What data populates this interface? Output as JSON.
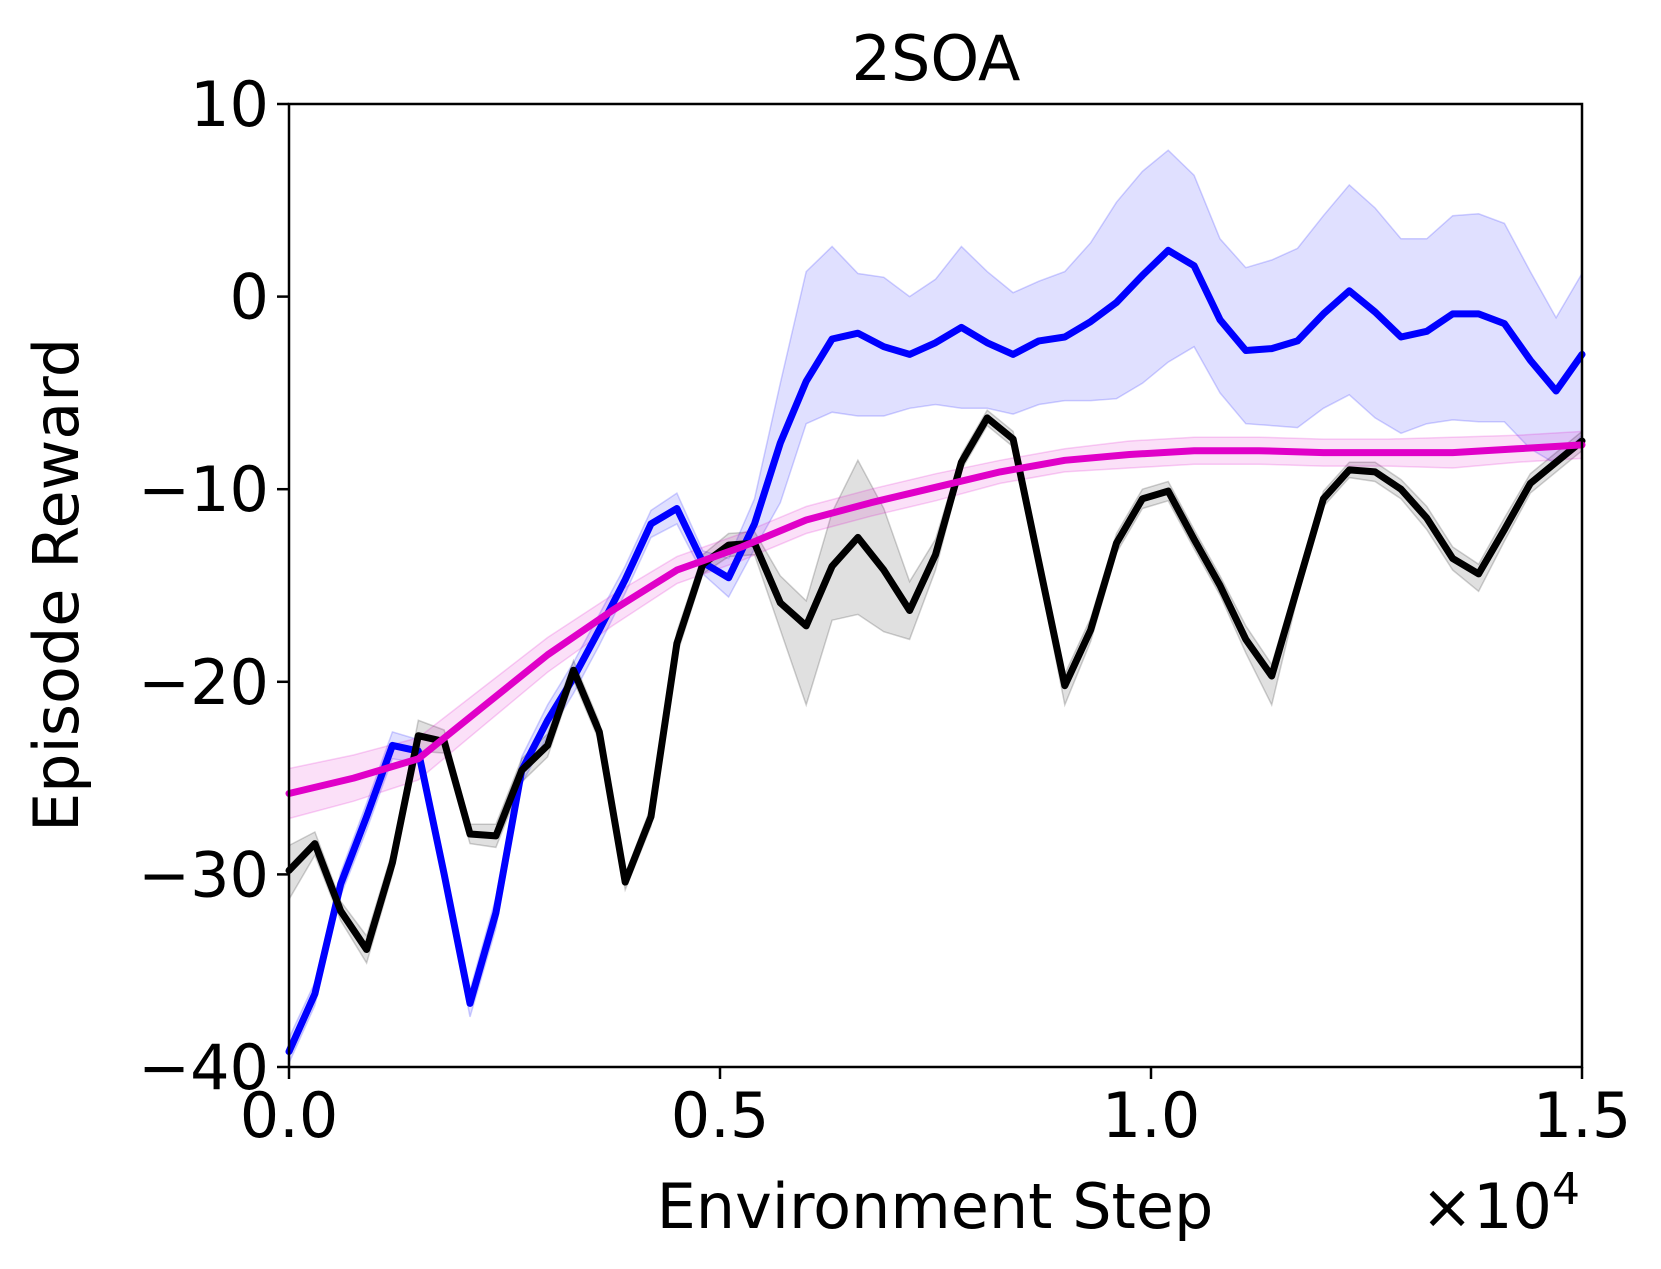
{
  "chart_data": {
    "type": "line",
    "title": "2SOA",
    "xlabel": "Environment Step",
    "ylabel": "Episode Reward",
    "x_scale_label": "×10",
    "x_scale_exponent": "4",
    "xlim": [
      0.0,
      1.5
    ],
    "ylim": [
      -40,
      10
    ],
    "xticks": [
      0.0,
      0.5,
      1.0,
      1.5
    ],
    "xtick_labels": [
      "0.0",
      "0.5",
      "1.0",
      "1.5"
    ],
    "yticks": [
      10,
      0,
      -10,
      -20,
      -30,
      -40
    ],
    "ytick_labels": [
      "10",
      "0",
      "−10",
      "−20",
      "−30",
      "−40"
    ],
    "grid": false,
    "series": [
      {
        "name": "blue",
        "color": "#0000ff",
        "x": [
          0.0,
          0.03,
          0.06,
          0.09,
          0.12,
          0.15,
          0.18,
          0.21,
          0.24,
          0.27,
          0.3,
          0.33,
          0.36,
          0.39,
          0.42,
          0.45,
          0.48,
          0.51,
          0.54,
          0.57,
          0.6,
          0.63,
          0.66,
          0.69,
          0.72,
          0.75,
          0.78,
          0.81,
          0.84,
          0.87,
          0.9,
          0.93,
          0.96,
          0.99,
          1.02,
          1.05,
          1.08,
          1.11,
          1.14,
          1.17,
          1.2,
          1.23,
          1.26,
          1.29,
          1.32,
          1.35,
          1.38,
          1.41,
          1.44,
          1.47,
          1.5
        ],
        "values": [
          -39.2,
          -36.2,
          -30.5,
          -27.0,
          -23.3,
          -23.6,
          -30.0,
          -36.7,
          -32.0,
          -24.6,
          -22.0,
          -19.8,
          -17.3,
          -14.7,
          -11.8,
          -11.0,
          -13.8,
          -14.6,
          -11.8,
          -7.6,
          -4.4,
          -2.2,
          -1.9,
          -2.6,
          -3.0,
          -2.4,
          -1.6,
          -2.4,
          -3.0,
          -2.3,
          -2.1,
          -1.3,
          -0.3,
          1.1,
          2.4,
          1.6,
          -1.2,
          -2.8,
          -2.7,
          -2.3,
          -0.9,
          0.3,
          -0.8,
          -2.1,
          -1.8,
          -0.9,
          -0.9,
          -1.4,
          -3.3,
          -4.9,
          -3.0
        ],
        "upper": [
          -38.5,
          -35.6,
          -29.9,
          -26.3,
          -22.6,
          -23.0,
          -29.4,
          -36.0,
          -31.2,
          -23.9,
          -21.2,
          -19.0,
          -16.5,
          -14.0,
          -11.1,
          -10.2,
          -13.2,
          -13.6,
          -10.5,
          -4.5,
          1.3,
          2.6,
          1.2,
          1.0,
          0.0,
          0.9,
          2.6,
          1.3,
          0.2,
          0.8,
          1.3,
          2.8,
          4.9,
          6.5,
          7.6,
          6.3,
          3.0,
          1.5,
          1.9,
          2.5,
          4.2,
          5.8,
          4.6,
          3.0,
          3.0,
          4.2,
          4.3,
          3.8,
          1.3,
          -1.1,
          1.2
        ],
        "lower": [
          -39.8,
          -36.8,
          -31.1,
          -27.7,
          -24.0,
          -24.2,
          -30.6,
          -37.4,
          -32.8,
          -25.3,
          -22.8,
          -20.6,
          -18.1,
          -15.4,
          -12.5,
          -11.8,
          -14.4,
          -15.6,
          -13.1,
          -10.7,
          -6.6,
          -6.0,
          -6.2,
          -6.2,
          -5.8,
          -5.6,
          -5.8,
          -5.8,
          -6.1,
          -5.6,
          -5.4,
          -5.4,
          -5.3,
          -4.5,
          -3.4,
          -2.6,
          -5.0,
          -6.6,
          -6.7,
          -6.8,
          -5.8,
          -5.1,
          -6.3,
          -7.1,
          -6.6,
          -6.4,
          -6.5,
          -6.5,
          -7.9,
          -8.7,
          -7.2
        ]
      },
      {
        "name": "black",
        "color": "#000000",
        "x": [
          0.0,
          0.03,
          0.06,
          0.09,
          0.12,
          0.15,
          0.18,
          0.21,
          0.24,
          0.27,
          0.3,
          0.33,
          0.36,
          0.39,
          0.42,
          0.45,
          0.48,
          0.51,
          0.54,
          0.57,
          0.6,
          0.63,
          0.66,
          0.69,
          0.72,
          0.75,
          0.78,
          0.81,
          0.84,
          0.87,
          0.9,
          0.93,
          0.96,
          0.99,
          1.02,
          1.05,
          1.08,
          1.11,
          1.14,
          1.17,
          1.2,
          1.23,
          1.26,
          1.29,
          1.32,
          1.35,
          1.38,
          1.41,
          1.44,
          1.47,
          1.5
        ],
        "values": [
          -29.8,
          -28.4,
          -31.9,
          -33.9,
          -29.4,
          -22.8,
          -23.1,
          -27.9,
          -28.0,
          -24.6,
          -23.3,
          -19.4,
          -22.6,
          -30.4,
          -27.0,
          -18.0,
          -13.9,
          -12.9,
          -12.8,
          -15.9,
          -17.1,
          -14.0,
          -12.5,
          -14.2,
          -16.3,
          -13.4,
          -8.6,
          -6.3,
          -7.4,
          -13.8,
          -20.2,
          -17.3,
          -12.8,
          -10.5,
          -10.1,
          -12.6,
          -15.0,
          -17.8,
          -19.7,
          -15.1,
          -10.5,
          -9.0,
          -9.1,
          -10.0,
          -11.5,
          -13.6,
          -14.4,
          -12.1,
          -9.7,
          -8.6,
          -7.5
        ],
        "upper": [
          -28.5,
          -27.8,
          -31.4,
          -33.2,
          -28.8,
          -22.0,
          -22.5,
          -27.4,
          -27.4,
          -24.0,
          -22.7,
          -18.9,
          -22.1,
          -30.0,
          -26.5,
          -17.4,
          -13.4,
          -12.3,
          -12.2,
          -14.5,
          -15.8,
          -11.2,
          -8.5,
          -11.0,
          -14.8,
          -12.6,
          -8.2,
          -5.9,
          -7.0,
          -13.3,
          -19.6,
          -16.7,
          -12.3,
          -10.0,
          -9.6,
          -12.1,
          -14.5,
          -17.1,
          -19.1,
          -14.6,
          -10.1,
          -8.6,
          -8.6,
          -9.5,
          -10.9,
          -13.0,
          -13.9,
          -11.5,
          -9.2,
          -8.1,
          -7.0
        ],
        "lower": [
          -31.3,
          -29.0,
          -32.4,
          -34.6,
          -30.0,
          -23.6,
          -23.7,
          -28.4,
          -28.6,
          -25.2,
          -23.9,
          -19.9,
          -23.1,
          -30.8,
          -27.5,
          -18.6,
          -14.4,
          -13.5,
          -13.4,
          -17.3,
          -21.2,
          -16.8,
          -16.5,
          -17.4,
          -17.8,
          -14.2,
          -9.0,
          -6.7,
          -7.8,
          -14.3,
          -21.2,
          -17.9,
          -13.3,
          -11.0,
          -10.6,
          -13.1,
          -15.5,
          -18.5,
          -21.2,
          -15.6,
          -10.9,
          -9.4,
          -9.6,
          -10.5,
          -12.1,
          -14.2,
          -15.3,
          -12.7,
          -10.2,
          -9.1,
          -8.0
        ]
      },
      {
        "name": "magenta",
        "color": "#e000c8",
        "x": [
          0.0,
          0.075,
          0.15,
          0.225,
          0.3,
          0.375,
          0.45,
          0.525,
          0.6,
          0.675,
          0.75,
          0.825,
          0.9,
          0.975,
          1.05,
          1.125,
          1.2,
          1.275,
          1.35,
          1.425,
          1.5
        ],
        "values": [
          -25.8,
          -25.0,
          -24.0,
          -21.3,
          -18.6,
          -16.3,
          -14.2,
          -13.0,
          -11.6,
          -10.7,
          -9.9,
          -9.1,
          -8.5,
          -8.2,
          -8.0,
          -8.0,
          -8.1,
          -8.1,
          -8.1,
          -7.9,
          -7.7
        ],
        "upper": [
          -24.5,
          -23.8,
          -22.9,
          -20.3,
          -17.7,
          -15.5,
          -13.5,
          -12.3,
          -10.9,
          -10.0,
          -9.2,
          -8.5,
          -7.9,
          -7.5,
          -7.3,
          -7.3,
          -7.4,
          -7.4,
          -7.3,
          -7.2,
          -7.0
        ],
        "lower": [
          -27.1,
          -26.2,
          -25.1,
          -22.3,
          -19.5,
          -17.1,
          -14.9,
          -13.7,
          -12.3,
          -11.4,
          -10.6,
          -9.7,
          -9.1,
          -8.9,
          -8.7,
          -8.7,
          -8.8,
          -8.8,
          -8.9,
          -8.6,
          -8.4
        ]
      }
    ]
  }
}
